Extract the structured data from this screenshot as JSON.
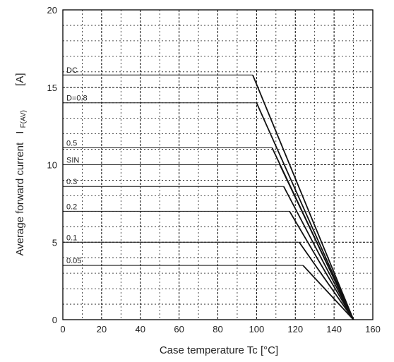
{
  "chart_data": {
    "type": "line",
    "xlabel": "Case temperature   Tc   [°C]",
    "ylabel_main": "Average forward current",
    "ylabel_symbol": "I",
    "ylabel_sub": "F(AV)",
    "ylabel_unit": "[A]",
    "xlim": [
      0,
      160
    ],
    "ylim": [
      0,
      20
    ],
    "x_ticks": [
      "0",
      "20",
      "40",
      "60",
      "80",
      "100",
      "120",
      "140",
      "160"
    ],
    "y_ticks": [
      "0",
      "5",
      "10",
      "15",
      "20"
    ],
    "grid": true,
    "series": [
      {
        "name": "DC",
        "points": [
          [
            0,
            15.8
          ],
          [
            98,
            15.8
          ],
          [
            150,
            0
          ]
        ]
      },
      {
        "name": "D=0.8",
        "points": [
          [
            0,
            14.0
          ],
          [
            100,
            14.0
          ],
          [
            150,
            0
          ]
        ]
      },
      {
        "name": "0.5",
        "points": [
          [
            0,
            11.1
          ],
          [
            108,
            11.1
          ],
          [
            150,
            0
          ]
        ]
      },
      {
        "name": "SIN",
        "points": [
          [
            0,
            10.0
          ],
          [
            112,
            10.0
          ],
          [
            150,
            0
          ]
        ]
      },
      {
        "name": "0.3",
        "points": [
          [
            0,
            8.6
          ],
          [
            114,
            8.6
          ],
          [
            150,
            0
          ]
        ]
      },
      {
        "name": "0.2",
        "points": [
          [
            0,
            7.0
          ],
          [
            117,
            7.0
          ],
          [
            150,
            0
          ]
        ]
      },
      {
        "name": "0.1",
        "points": [
          [
            0,
            5.0
          ],
          [
            122,
            5.0
          ],
          [
            150,
            0
          ]
        ]
      },
      {
        "name": "0.05",
        "points": [
          [
            0,
            3.5
          ],
          [
            124,
            3.5
          ],
          [
            150,
            0
          ]
        ]
      }
    ]
  }
}
